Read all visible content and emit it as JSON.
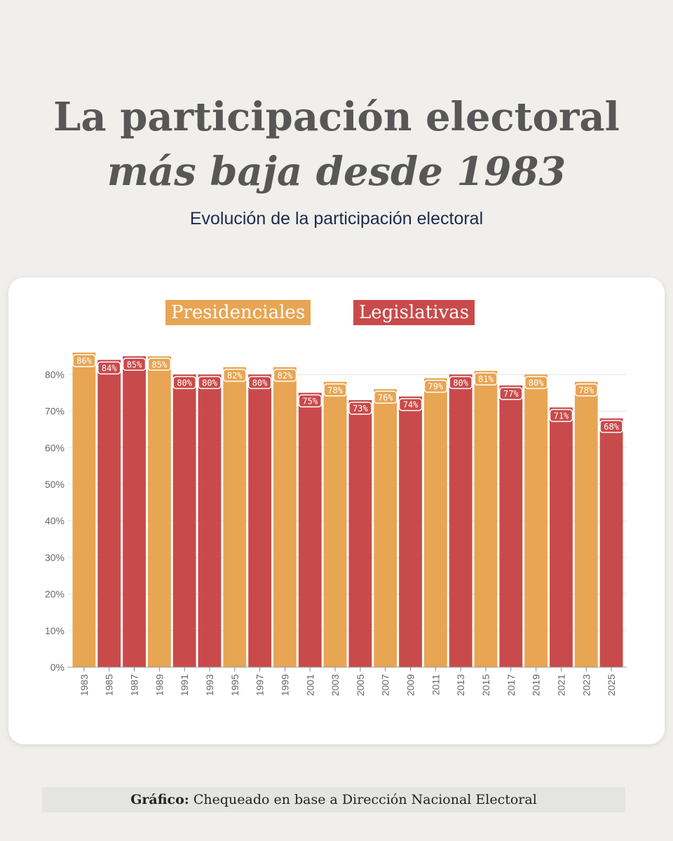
{
  "header": {
    "title_line1": "La participación electoral",
    "title_line2": "más baja desde 1983",
    "subtitle": "Evolución de la participación electoral"
  },
  "legend": {
    "presidenciales": "Presidenciales",
    "legislativas": "Legislativas"
  },
  "footer": {
    "label": "Gráfico:",
    "text": "Chequeado en base a Dirección Nacional Electoral"
  },
  "colors": {
    "presidenciales": "#e8a553",
    "legislativas": "#c94a4a"
  },
  "chart_data": {
    "type": "bar",
    "categories": [
      "1983",
      "1985",
      "1987",
      "1989",
      "1991",
      "1993",
      "1995",
      "1997",
      "1999",
      "2001",
      "2003",
      "2005",
      "2007",
      "2009",
      "2011",
      "2013",
      "2015",
      "2017",
      "2019",
      "2021",
      "2023",
      "2025"
    ],
    "values": [
      86,
      84,
      85,
      85,
      80,
      80,
      82,
      80,
      82,
      75,
      78,
      73,
      76,
      74,
      79,
      80,
      81,
      77,
      80,
      71,
      78,
      68
    ],
    "labels": [
      "86%",
      "84%",
      "85%",
      "85%",
      "80%",
      "80%",
      "82%",
      "80%",
      "82%",
      "75%",
      "78%",
      "73%",
      "76%",
      "74%",
      "79%",
      "80%",
      "81%",
      "77%",
      "80%",
      "71%",
      "78%",
      "68%"
    ],
    "election_type": [
      "Presidenciales",
      "Legislativas",
      "Legislativas",
      "Presidenciales",
      "Legislativas",
      "Legislativas",
      "Presidenciales",
      "Legislativas",
      "Presidenciales",
      "Legislativas",
      "Presidenciales",
      "Legislativas",
      "Presidenciales",
      "Legislativas",
      "Presidenciales",
      "Legislativas",
      "Presidenciales",
      "Legislativas",
      "Presidenciales",
      "Legislativas",
      "Presidenciales",
      "Legislativas"
    ],
    "yticks": [
      "0%",
      "10%",
      "20%",
      "30%",
      "40%",
      "50%",
      "60%",
      "70%",
      "80%"
    ],
    "ylim": [
      0,
      86
    ],
    "grid": true,
    "legend_position": "top"
  }
}
